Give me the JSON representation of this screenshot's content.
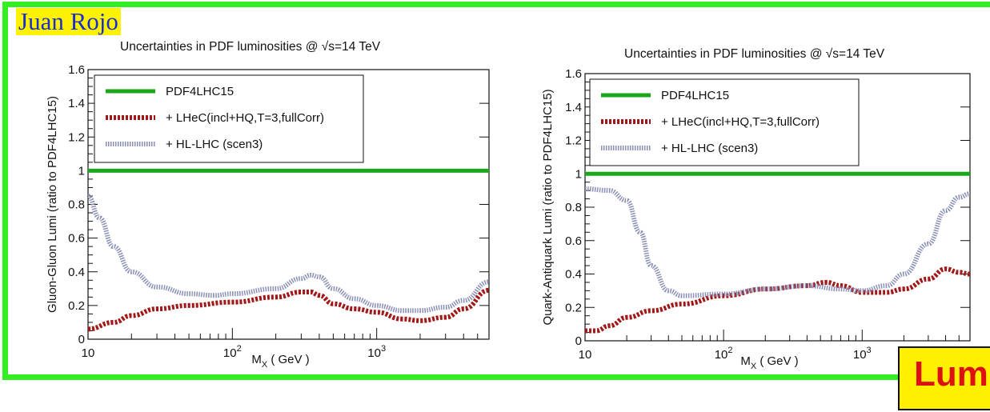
{
  "author": "Juan Rojo",
  "banner_text": "Lum",
  "colors": {
    "frame": "#33ee22",
    "author_bg": "#fff200",
    "author_text": "#1a2ecc",
    "pdf4lhc": "#1aa81a",
    "lhec": "#a01818",
    "hllhc": "#8a8fb8",
    "banner_bg": "#fff000",
    "banner_text": "#dd1111"
  },
  "chart_data": [
    {
      "type": "line",
      "title": "Uncertainties in PDF luminosities @ √s=14 TeV",
      "xlabel": "M_X ( GeV )",
      "ylabel": "Gluon-Gluon Lumi (ratio to PDF4LHC15)",
      "xscale": "log",
      "xlim": [
        10,
        6000
      ],
      "ylim": [
        0,
        1.6
      ],
      "xticks": [
        10,
        100,
        1000
      ],
      "xtick_labels": [
        "10",
        "10^2",
        "10^3"
      ],
      "yticks": [
        0,
        0.2,
        0.4,
        0.6,
        0.8,
        1,
        1.2,
        1.4,
        1.6
      ],
      "ytick_labels": [
        "0",
        "0.2",
        "0.4",
        "0.6",
        "0.8",
        "1",
        "1.2",
        "1.4",
        "1.6"
      ],
      "legend_position": "top-left",
      "series": [
        {
          "name": "PDF4LHC15",
          "style": "solid",
          "x": [
            10,
            6000
          ],
          "y": [
            1.0,
            1.0
          ]
        },
        {
          "name": "+ LHeC(incl+HQ,T=3,fullCorr)",
          "style": "dotted",
          "x": [
            10,
            15,
            20,
            30,
            50,
            100,
            200,
            300,
            350,
            400,
            500,
            700,
            1000,
            1500,
            2000,
            3000,
            4000,
            6000
          ],
          "y": [
            0.06,
            0.1,
            0.14,
            0.18,
            0.2,
            0.22,
            0.25,
            0.28,
            0.28,
            0.26,
            0.21,
            0.18,
            0.16,
            0.12,
            0.11,
            0.13,
            0.18,
            0.29
          ]
        },
        {
          "name": "+ HL-LHC (scen3)",
          "style": "dotted",
          "x": [
            10,
            12,
            15,
            20,
            30,
            50,
            75,
            100,
            200,
            300,
            350,
            400,
            500,
            700,
            1000,
            1500,
            2000,
            3000,
            4000,
            6000
          ],
          "y": [
            0.85,
            0.72,
            0.55,
            0.4,
            0.31,
            0.27,
            0.26,
            0.27,
            0.3,
            0.36,
            0.38,
            0.37,
            0.3,
            0.24,
            0.2,
            0.17,
            0.17,
            0.19,
            0.23,
            0.34
          ]
        }
      ]
    },
    {
      "type": "line",
      "title": "Uncertainties in PDF luminosities @ √s=14 TeV",
      "xlabel": "M_X ( GeV )",
      "ylabel": "Quark-Antiquark Lumi (ratio to PDF4LHC15)",
      "xscale": "log",
      "xlim": [
        10,
        6000
      ],
      "ylim": [
        0,
        1.6
      ],
      "xticks": [
        10,
        100,
        1000
      ],
      "xtick_labels": [
        "10",
        "10^2",
        "10^3"
      ],
      "yticks": [
        0,
        0.2,
        0.4,
        0.6,
        0.8,
        1,
        1.2,
        1.4,
        1.6
      ],
      "ytick_labels": [
        "0",
        "0.2",
        "0.4",
        "0.6",
        "0.8",
        "1",
        "1.2",
        "1.4",
        "1.6"
      ],
      "legend_position": "top-left",
      "series": [
        {
          "name": "PDF4LHC15",
          "style": "solid",
          "x": [
            10,
            6000
          ],
          "y": [
            1.0,
            1.0
          ]
        },
        {
          "name": "+ LHeC(incl+HQ,T=3,fullCorr)",
          "style": "dotted",
          "x": [
            10,
            12,
            15,
            20,
            30,
            50,
            100,
            200,
            400,
            550,
            700,
            1000,
            1500,
            2000,
            3000,
            4000,
            5000,
            6000
          ],
          "y": [
            0.06,
            0.06,
            0.09,
            0.14,
            0.18,
            0.22,
            0.27,
            0.31,
            0.33,
            0.35,
            0.33,
            0.29,
            0.29,
            0.31,
            0.37,
            0.43,
            0.41,
            0.4
          ]
        },
        {
          "name": "+ HL-LHC (scen3)",
          "style": "dotted",
          "x": [
            10,
            15,
            20,
            25,
            30,
            40,
            50,
            100,
            200,
            400,
            700,
            1000,
            1500,
            2000,
            3000,
            4000,
            5000,
            6000
          ],
          "y": [
            0.91,
            0.9,
            0.84,
            0.65,
            0.45,
            0.3,
            0.27,
            0.28,
            0.31,
            0.33,
            0.31,
            0.3,
            0.33,
            0.4,
            0.58,
            0.78,
            0.86,
            0.88
          ]
        }
      ]
    }
  ]
}
